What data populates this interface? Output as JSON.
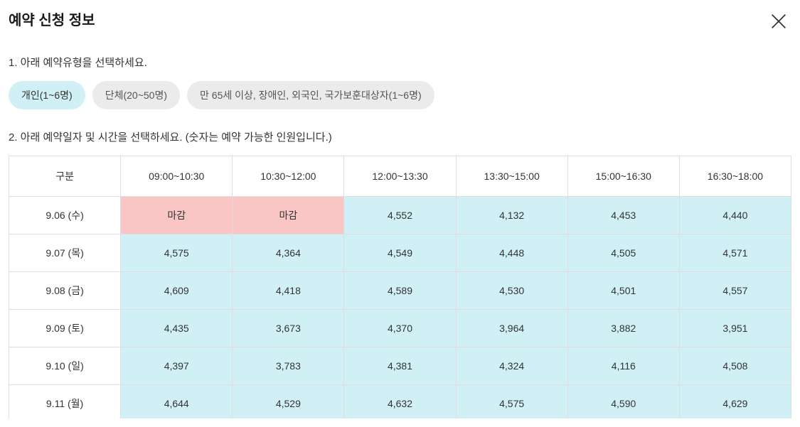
{
  "header": {
    "title": "예약 신청 정보"
  },
  "section1": {
    "label": "1. 아래 예약유형을 선택하세요.",
    "tabs": [
      {
        "label": "개인(1~6명)",
        "active": true
      },
      {
        "label": "단체(20~50명)",
        "active": false
      },
      {
        "label": "만 65세 이상, 장애인, 외국인, 국가보훈대상자(1~6명)",
        "active": false
      }
    ]
  },
  "section2": {
    "label": "2. 아래 예약일자 및 시간을 선택하세요. (숫자는 예약 가능한 인원입니다.)"
  },
  "table": {
    "header_label": "구분",
    "columns": [
      "09:00~10:30",
      "10:30~12:00",
      "12:00~13:30",
      "13:30~15:00",
      "15:00~16:30",
      "16:30~18:00"
    ],
    "closed_label": "마감",
    "rows": [
      {
        "date": "9.06 (수)",
        "cells": [
          {
            "value": "마감",
            "status": "closed"
          },
          {
            "value": "마감",
            "status": "closed"
          },
          {
            "value": "4,552",
            "status": "available"
          },
          {
            "value": "4,132",
            "status": "available"
          },
          {
            "value": "4,453",
            "status": "available"
          },
          {
            "value": "4,440",
            "status": "available"
          }
        ]
      },
      {
        "date": "9.07 (목)",
        "cells": [
          {
            "value": "4,575",
            "status": "available"
          },
          {
            "value": "4,364",
            "status": "available"
          },
          {
            "value": "4,549",
            "status": "available"
          },
          {
            "value": "4,448",
            "status": "available"
          },
          {
            "value": "4,505",
            "status": "available"
          },
          {
            "value": "4,571",
            "status": "available"
          }
        ]
      },
      {
        "date": "9.08 (금)",
        "cells": [
          {
            "value": "4,609",
            "status": "available"
          },
          {
            "value": "4,418",
            "status": "available"
          },
          {
            "value": "4,589",
            "status": "available"
          },
          {
            "value": "4,530",
            "status": "available"
          },
          {
            "value": "4,501",
            "status": "available"
          },
          {
            "value": "4,557",
            "status": "available"
          }
        ]
      },
      {
        "date": "9.09 (토)",
        "cells": [
          {
            "value": "4,435",
            "status": "available"
          },
          {
            "value": "3,673",
            "status": "available"
          },
          {
            "value": "4,370",
            "status": "available"
          },
          {
            "value": "3,964",
            "status": "available"
          },
          {
            "value": "3,882",
            "status": "available"
          },
          {
            "value": "3,951",
            "status": "available"
          }
        ]
      },
      {
        "date": "9.10 (일)",
        "cells": [
          {
            "value": "4,397",
            "status": "available"
          },
          {
            "value": "3,783",
            "status": "available"
          },
          {
            "value": "4,381",
            "status": "available"
          },
          {
            "value": "4,324",
            "status": "available"
          },
          {
            "value": "4,116",
            "status": "available"
          },
          {
            "value": "4,508",
            "status": "available"
          }
        ]
      },
      {
        "date": "9.11 (월)",
        "cells": [
          {
            "value": "4,644",
            "status": "available"
          },
          {
            "value": "4,529",
            "status": "available"
          },
          {
            "value": "4,632",
            "status": "available"
          },
          {
            "value": "4,575",
            "status": "available"
          },
          {
            "value": "4,590",
            "status": "available"
          },
          {
            "value": "4,629",
            "status": "available"
          }
        ]
      }
    ]
  },
  "colors": {
    "available_bg": "#d0f0f5",
    "closed_bg": "#f9c5c5",
    "tab_active_bg": "#d0f0f5",
    "tab_inactive_bg": "#ebebeb",
    "border": "#dddddd",
    "text": "#333333"
  }
}
